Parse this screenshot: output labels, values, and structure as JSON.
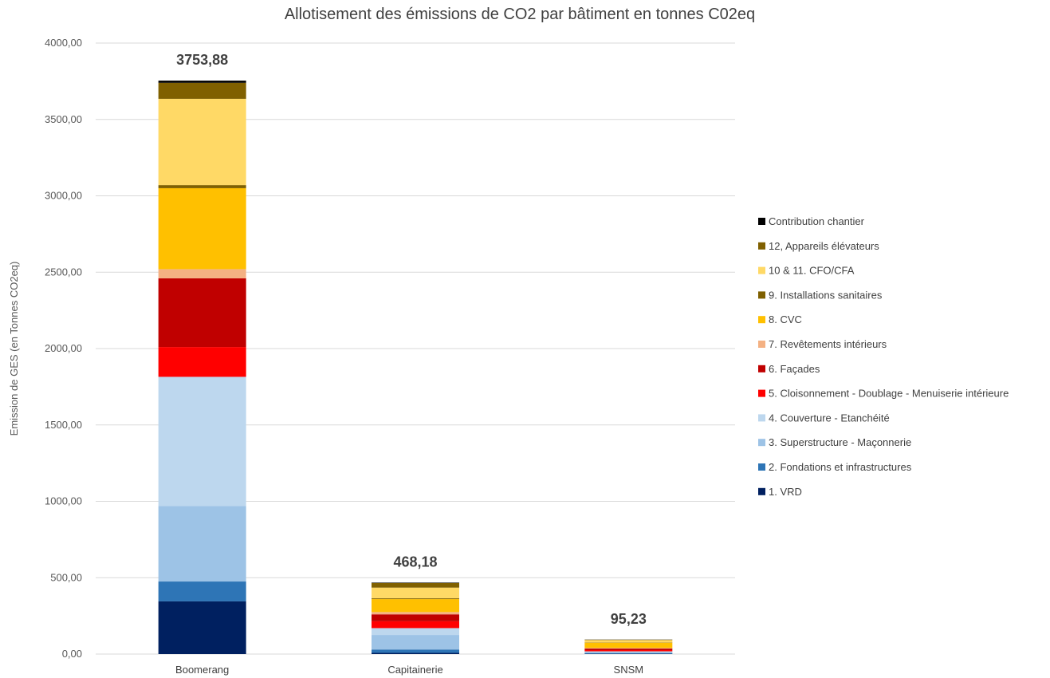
{
  "chart_data": {
    "type": "bar",
    "stacked": true,
    "title": "Allotisement des émissions de CO2 par bâtiment en tonnes C02eq",
    "ylabel": "Emission de GES (en Tonnes CO2eq)",
    "xlabel": "",
    "ylim": [
      0,
      4000
    ],
    "yticks": [
      "0,00",
      "500,00",
      "1000,00",
      "1500,00",
      "2000,00",
      "2500,00",
      "3000,00",
      "3500,00",
      "4000,00"
    ],
    "ytick_values": [
      0,
      500,
      1000,
      1500,
      2000,
      2500,
      3000,
      3500,
      4000
    ],
    "grid": true,
    "legend_position": "right",
    "categories": [
      "Boomerang",
      "Capitainerie",
      "SNSM"
    ],
    "totals": [
      "3753,88",
      "468,18",
      "95,23"
    ],
    "total_values": [
      3753.88,
      468.18,
      95.23
    ],
    "series": [
      {
        "name": "1. VRD",
        "color": "#002060",
        "values": [
          345,
          8,
          2
        ]
      },
      {
        "name": "2. Fondations et infrastructures",
        "color": "#2E75B6",
        "values": [
          130,
          22,
          5
        ]
      },
      {
        "name": "3. Superstructure - Maçonnerie",
        "color": "#9DC3E6",
        "values": [
          495,
          95,
          6
        ]
      },
      {
        "name": "4. Couverture - Etanchéité",
        "color": "#BDD7EE",
        "values": [
          845,
          45,
          5
        ]
      },
      {
        "name": "5. Cloisonnement - Doublage - Menuiserie intérieure",
        "color": "#FF0000",
        "values": [
          195,
          45,
          8
        ]
      },
      {
        "name": "6. Façades",
        "color": "#C00000",
        "values": [
          450,
          45,
          10
        ]
      },
      {
        "name": "7. Revêtements intérieurs",
        "color": "#F4B183",
        "values": [
          60,
          15,
          4
        ]
      },
      {
        "name": "8. CVC",
        "color": "#FFC000",
        "values": [
          530,
          85,
          35
        ]
      },
      {
        "name": "9. Installations sanitaires",
        "color": "#7F6000",
        "values": [
          20,
          5,
          2
        ]
      },
      {
        "name": "10 & 11. CFO/CFA",
        "color": "#FFD966",
        "values": [
          565,
          70,
          15
        ]
      },
      {
        "name": "12, Appareils élévateurs",
        "color": "#806000",
        "values": [
          105,
          30,
          2
        ]
      },
      {
        "name": "Contribution chantier",
        "color": "#000000",
        "values": [
          14,
          3,
          1.23
        ]
      }
    ]
  }
}
